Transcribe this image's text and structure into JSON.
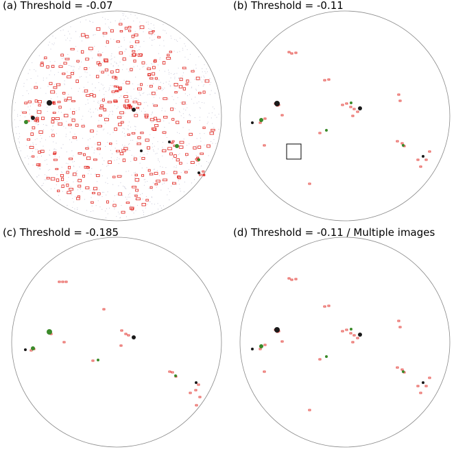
{
  "panels": [
    {
      "id": "a",
      "title": "(a) Threshold = -0.07"
    },
    {
      "id": "b",
      "title": "(b) Threshold = -0.11"
    },
    {
      "id": "c",
      "title": "(c) Threshold = -0.185"
    },
    {
      "id": "d",
      "title": "(d) Threshold = -0.11 / Multiple images"
    }
  ],
  "colors": {
    "disk_outline": "#888888",
    "detection_box": "#e0201a",
    "green_blob": "#3a8a2a",
    "dark_blob": "#1a1a1a",
    "noise": "#c8c8d8",
    "highlight_box": "#000000"
  }
}
